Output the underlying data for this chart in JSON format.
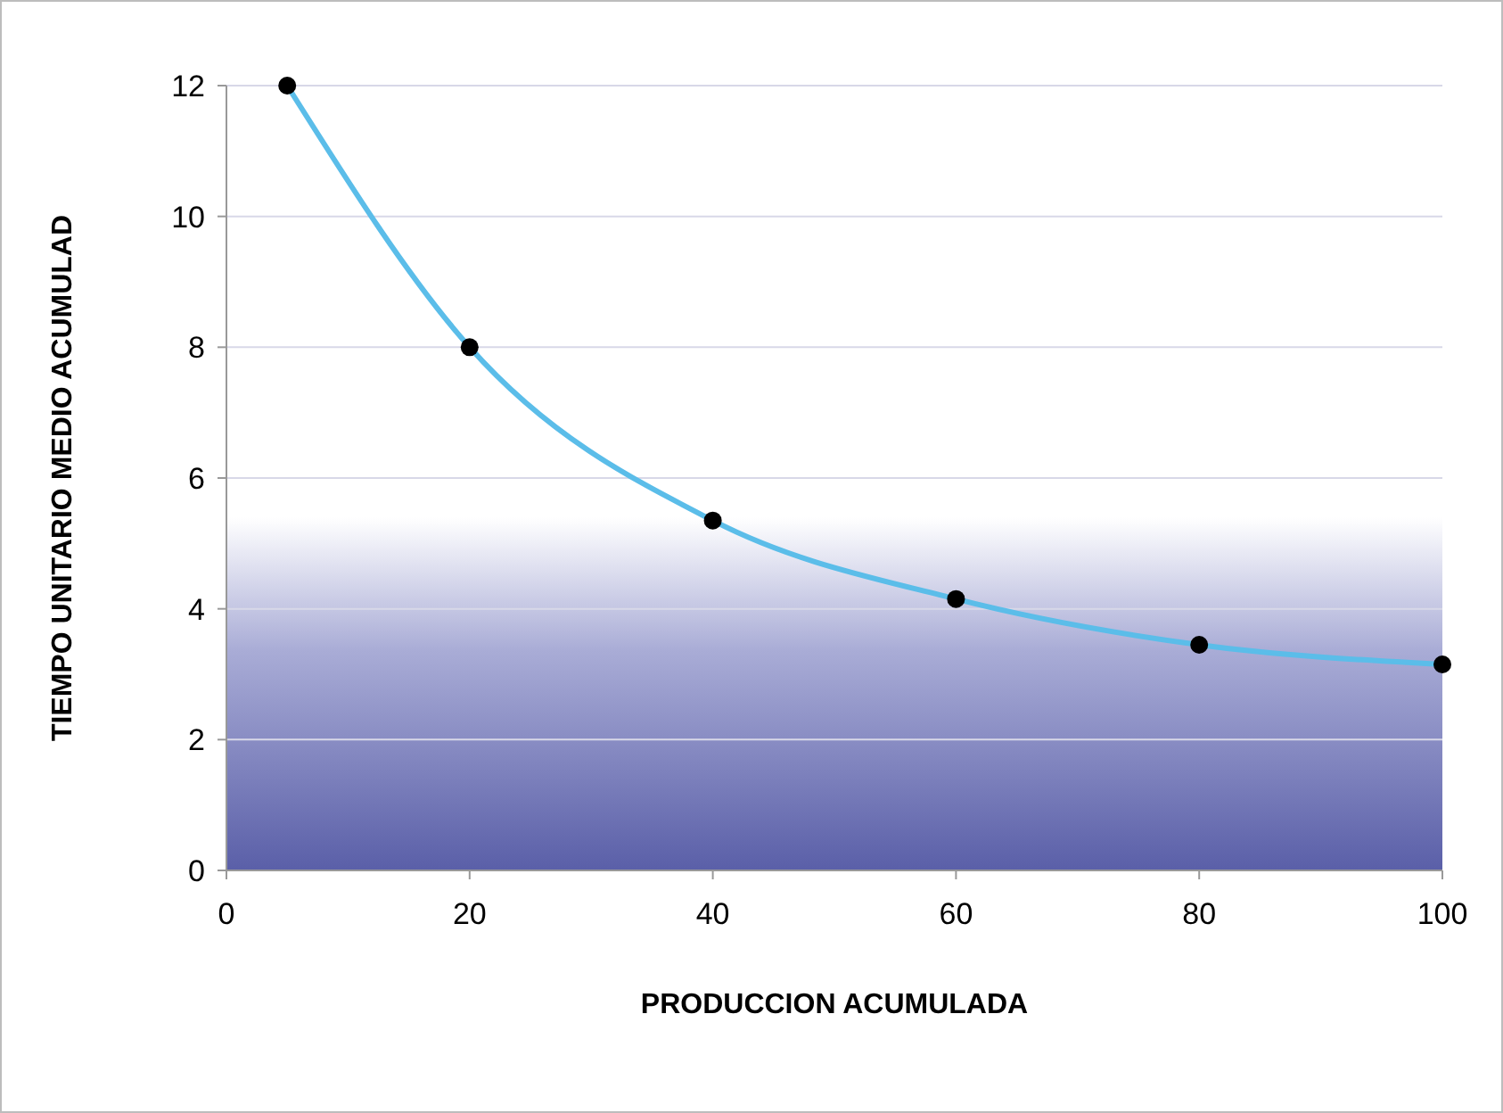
{
  "chart_data": {
    "type": "line",
    "xlabel": "PRODUCCION ACUMULADA",
    "ylabel": "TIEMPO UNITARIO MEDIO ACUMULAD",
    "x": [
      5,
      20,
      40,
      60,
      80,
      100
    ],
    "series": [
      {
        "color": "#5bbde9",
        "values": [
          12,
          8,
          5.35,
          4.15,
          3.45,
          3.15
        ]
      }
    ],
    "xlim": [
      0,
      100
    ],
    "xticks": [
      0,
      20,
      40,
      60,
      80,
      100
    ],
    "ylim": [
      0,
      12
    ],
    "yticks": [
      0,
      2,
      4,
      6,
      8,
      10,
      12
    ],
    "grid": "y",
    "marker": "circle",
    "line_style": "solid"
  }
}
